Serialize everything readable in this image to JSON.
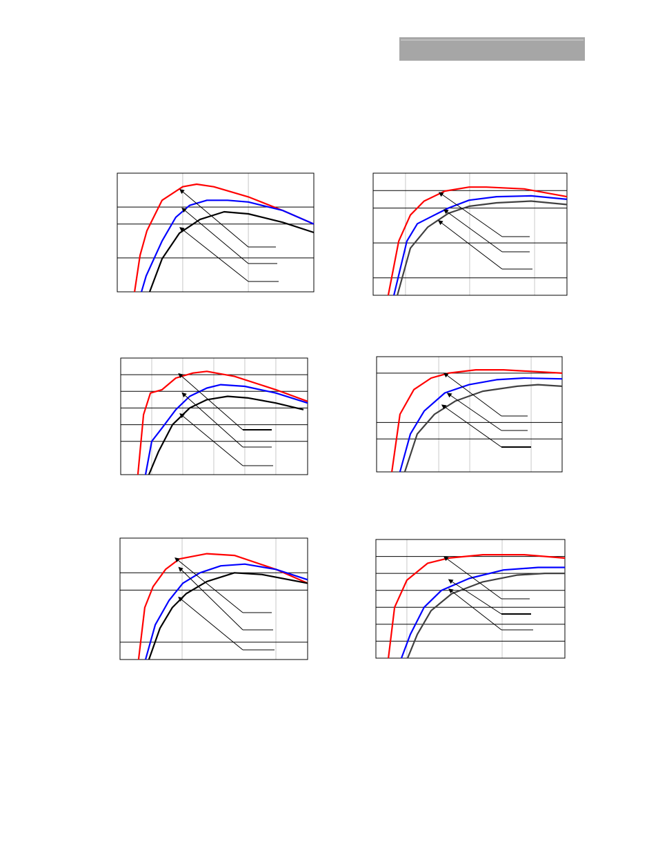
{
  "chart_data": [
    {
      "type": "line",
      "xlim": [
        0,
        10
      ],
      "ylim": [
        0,
        7
      ],
      "xticks": [
        3.33,
        6.67
      ],
      "yticks": [
        2,
        4,
        5
      ],
      "grid": true,
      "series": [
        {
          "color": "#ff0000",
          "x": [
            0.88,
            1.16,
            1.51,
            2.28,
            3.33,
            4.04,
            4.91,
            6.67,
            8.42,
            10
          ],
          "values": [
            0,
            2.16,
            3.6,
            5.4,
            6.2,
            6.35,
            6.2,
            5.6,
            4.8,
            4.0
          ]
        },
        {
          "color": "#0000ff",
          "x": [
            1.23,
            1.47,
            2.28,
            2.98,
            3.68,
            4.56,
            5.61,
            6.67,
            8.42,
            10
          ],
          "values": [
            0,
            0.94,
            3.0,
            4.4,
            5.1,
            5.4,
            5.4,
            5.3,
            4.8,
            4.0
          ]
        },
        {
          "color": "#000000",
          "x": [
            1.65,
            2.28,
            3.16,
            4.21,
            5.44,
            6.67,
            8.42,
            10
          ],
          "values": [
            0,
            1.95,
            3.46,
            4.27,
            4.72,
            4.6,
            4.1,
            3.5
          ]
        }
      ]
    },
    {
      "type": "line",
      "xlim": [
        0,
        10
      ],
      "ylim": [
        0,
        7
      ],
      "xticks": [
        1.67,
        4.98,
        8.33
      ],
      "yticks": [
        1,
        3,
        5,
        6
      ],
      "grid": true,
      "series": [
        {
          "color": "#ff0000",
          "x": [
            0.78,
            1.32,
            1.92,
            2.63,
            3.7,
            4.95,
            5.84,
            7.79,
            10
          ],
          "values": [
            0,
            3.1,
            4.6,
            5.4,
            5.97,
            6.2,
            6.2,
            6.1,
            5.65
          ]
        },
        {
          "color": "#0000ff",
          "x": [
            1.07,
            1.74,
            2.28,
            2.99,
            3.88,
            4.95,
            6.37,
            8.15,
            10
          ],
          "values": [
            0,
            3.1,
            4.1,
            4.5,
            5.0,
            5.45,
            5.65,
            5.7,
            5.5
          ]
        },
        {
          "color": "#404040",
          "x": [
            1.25,
            1.92,
            2.81,
            3.88,
            4.95,
            6.37,
            8.15,
            10
          ],
          "values": [
            0,
            2.7,
            3.9,
            4.7,
            5.1,
            5.3,
            5.4,
            5.2
          ]
        }
      ]
    },
    {
      "type": "line",
      "xlim": [
        0,
        10
      ],
      "ylim": [
        0,
        7
      ],
      "xticks": [
        1.66,
        3.32,
        4.98,
        6.64,
        8.3
      ],
      "yticks": [
        2,
        3,
        4,
        5,
        6
      ],
      "grid": true,
      "series": [
        {
          "color": "#ff0000",
          "x": [
            0.92,
            1.22,
            1.59,
            2.21,
            2.95,
            3.87,
            4.61,
            6.09,
            8.3,
            10
          ],
          "values": [
            0,
            3.6,
            4.9,
            5.1,
            5.8,
            6.1,
            6.2,
            5.9,
            5.1,
            4.4
          ]
        },
        {
          "color": "#0000ff",
          "x": [
            1.33,
            1.66,
            2.21,
            2.95,
            3.69,
            4.61,
            5.35,
            6.64,
            8.3,
            10
          ],
          "values": [
            0,
            2.0,
            2.8,
            3.9,
            4.7,
            5.2,
            5.4,
            5.3,
            4.9,
            4.3
          ]
        },
        {
          "color": "#000000",
          "x": [
            1.51,
            2.03,
            2.77,
            3.69,
            4.61,
            5.72,
            6.83,
            8.3,
            9.78
          ],
          "values": [
            0,
            1.4,
            3.0,
            4.0,
            4.5,
            4.7,
            4.6,
            4.3,
            3.9
          ]
        }
      ]
    },
    {
      "type": "line",
      "xlim": [
        0,
        10
      ],
      "ylim": [
        0,
        7
      ],
      "xticks": [
        3.35,
        5.02,
        8.33
      ],
      "yticks": [
        2,
        3,
        6
      ],
      "grid": true,
      "series": [
        {
          "color": "#ff0000",
          "x": [
            0.82,
            1.26,
            2.01,
            2.94,
            3.87,
            5.35,
            6.84,
            10
          ],
          "values": [
            0,
            3.5,
            5.0,
            5.7,
            6.0,
            6.2,
            6.2,
            6.0
          ]
        },
        {
          "color": "#0000ff",
          "x": [
            1.26,
            1.82,
            2.57,
            3.68,
            4.98,
            6.47,
            7.96,
            10
          ],
          "values": [
            0,
            2.3,
            3.7,
            4.8,
            5.3,
            5.6,
            5.7,
            5.65
          ]
        },
        {
          "color": "#404040",
          "x": [
            1.52,
            2.19,
            3.12,
            4.24,
            5.72,
            7.58,
            8.7,
            10
          ],
          "values": [
            0,
            2.3,
            3.5,
            4.3,
            4.9,
            5.2,
            5.3,
            5.2
          ]
        }
      ]
    },
    {
      "type": "line",
      "xlim": [
        0,
        10
      ],
      "ylim": [
        0,
        7
      ],
      "xticks": [
        3.31,
        8.31
      ],
      "yticks": [
        1,
        4,
        5
      ],
      "grid": true,
      "series": [
        {
          "color": "#ff0000",
          "x": [
            0.99,
            1.32,
            1.76,
            2.43,
            3.16,
            4.63,
            6.1,
            8.31,
            10
          ],
          "values": [
            0,
            3.0,
            4.2,
            5.2,
            5.8,
            6.1,
            6.0,
            5.2,
            4.4
          ]
        },
        {
          "color": "#0000ff",
          "x": [
            1.36,
            1.88,
            2.61,
            3.35,
            4.26,
            5.37,
            6.65,
            8.31,
            10
          ],
          "values": [
            0,
            2.0,
            3.4,
            4.4,
            5.0,
            5.4,
            5.5,
            5.2,
            4.6
          ]
        },
        {
          "color": "#000000",
          "x": [
            1.54,
            2.13,
            2.79,
            3.53,
            4.63,
            6.1,
            7.57,
            10
          ],
          "values": [
            0,
            1.8,
            3.0,
            3.8,
            4.5,
            5.0,
            4.9,
            4.4
          ]
        }
      ]
    },
    {
      "type": "line",
      "xlim": [
        0,
        10
      ],
      "ylim": [
        0,
        7
      ],
      "xticks": [
        1.64,
        6.68
      ],
      "yticks": [
        1,
        2,
        3,
        4,
        5,
        6
      ],
      "grid": true,
      "series": [
        {
          "color": "#ff0000",
          "x": [
            0.66,
            0.99,
            1.64,
            2.74,
            3.83,
            5.66,
            7.85,
            10
          ],
          "values": [
            0,
            3.0,
            4.6,
            5.6,
            5.9,
            6.1,
            6.1,
            5.9
          ]
        },
        {
          "color": "#0000ff",
          "x": [
            1.35,
            1.82,
            2.55,
            3.47,
            4.93,
            6.75,
            8.58,
            10
          ],
          "values": [
            0,
            1.4,
            3.0,
            4.0,
            4.7,
            5.2,
            5.35,
            5.35
          ]
        },
        {
          "color": "#404040",
          "x": [
            1.68,
            2.19,
            2.92,
            4.01,
            5.66,
            7.48,
            8.94,
            10
          ],
          "values": [
            0,
            1.4,
            2.8,
            3.8,
            4.5,
            4.9,
            5.0,
            5.0
          ]
        }
      ]
    }
  ]
}
